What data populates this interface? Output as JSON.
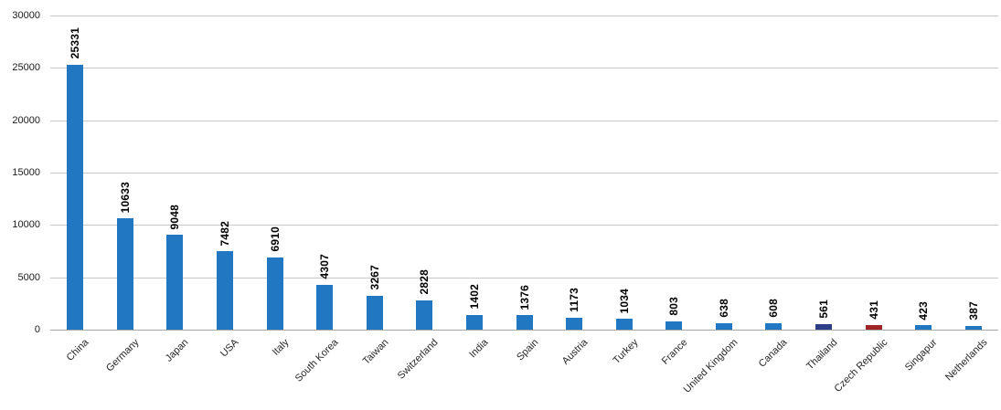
{
  "chart_data": {
    "type": "bar",
    "title": "",
    "xlabel": "",
    "ylabel": "",
    "categories": [
      "China",
      "Germany",
      "Japan",
      "USA",
      "Italy",
      "South Korea",
      "Taiwan",
      "Switzerland",
      "India",
      "Spain",
      "Austria",
      "Turkey",
      "France",
      "United Kingdom",
      "Canada",
      "Thailand",
      "Czech Republic",
      "Singapur",
      "Netherlands"
    ],
    "values": [
      25331,
      10633,
      9048,
      7482,
      6910,
      4307,
      3267,
      2828,
      1402,
      1376,
      1173,
      1034,
      803,
      638,
      608,
      561,
      431,
      423,
      387
    ],
    "bar_colors": [
      "#2277c3",
      "#2277c3",
      "#2277c3",
      "#2277c3",
      "#2277c3",
      "#2277c3",
      "#2277c3",
      "#2277c3",
      "#2277c3",
      "#2277c3",
      "#2277c3",
      "#2277c3",
      "#2277c3",
      "#2277c3",
      "#2277c3",
      "#2d3e87",
      "#9e2428",
      "#2277c3",
      "#2277c3"
    ],
    "default_bar_color": "#2277c3",
    "highlight_colors": {
      "Thailand": "#2d3e87",
      "Czech Republic": "#9e2428"
    },
    "ylim": [
      0,
      30000
    ],
    "yticks": [
      0,
      5000,
      10000,
      15000,
      20000,
      25000,
      30000
    ],
    "grid": true,
    "gridline_color": "#c8c8c8",
    "axis_line_color": "#a6a6a6",
    "value_label_color": "#000000",
    "value_label_rotation": 90,
    "category_label_rotation": 45,
    "legend": "none"
  }
}
